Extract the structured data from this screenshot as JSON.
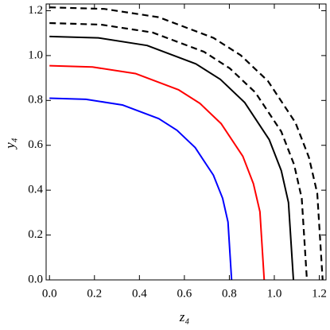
{
  "chart_data": {
    "type": "line",
    "x_label": "z₄",
    "y_label": "y₄",
    "xlim": [
      -0.015,
      1.23
    ],
    "ylim": [
      0,
      1.23
    ],
    "xticks": [
      {
        "value": 0,
        "label": "0.0"
      },
      0.2,
      0.4,
      0.6,
      0.8,
      {
        "value": 1,
        "label": "1.0"
      },
      1.2
    ],
    "yticks": [
      {
        "value": 0,
        "label": "0.0"
      },
      0.2,
      0.4,
      0.6,
      0.8,
      {
        "value": 1,
        "label": "1.0"
      },
      1.2
    ],
    "series": [
      {
        "color": "#0000ff",
        "dash": false,
        "x": [
          0,
          0.162,
          0.324,
          0.486,
          0.567,
          0.648,
          0.729,
          0.77,
          0.794,
          0.81
        ],
        "values": [
          0.81,
          0.805,
          0.78,
          0.719,
          0.667,
          0.59,
          0.467,
          0.364,
          0.258,
          0
        ]
      },
      {
        "color": "#ff0000",
        "dash": false,
        "x": [
          0,
          0.191,
          0.382,
          0.573,
          0.669,
          0.764,
          0.86,
          0.907,
          0.936,
          0.955
        ],
        "values": [
          0.955,
          0.949,
          0.92,
          0.848,
          0.787,
          0.696,
          0.551,
          0.429,
          0.304,
          0
        ]
      },
      {
        "color": "#000000",
        "dash": false,
        "x": [
          0,
          0.217,
          0.434,
          0.651,
          0.76,
          0.868,
          0.977,
          1.031,
          1.063,
          1.085
        ],
        "values": [
          1.085,
          1.079,
          1.045,
          0.963,
          0.894,
          0.791,
          0.626,
          0.487,
          0.345,
          0
        ]
      },
      {
        "color": "#000000",
        "dash": true,
        "x": [
          0,
          0.229,
          0.458,
          0.687,
          0.802,
          0.916,
          1.031,
          1.088,
          1.122,
          1.145
        ],
        "values": [
          1.145,
          1.138,
          1.103,
          1.017,
          0.943,
          0.835,
          0.661,
          0.514,
          0.364,
          0
        ]
      },
      {
        "color": "#000000",
        "dash": true,
        "x": [
          0,
          0.243,
          0.486,
          0.729,
          0.851,
          0.972,
          1.094,
          1.154,
          1.191,
          1.215
        ],
        "values": [
          1.215,
          1.208,
          1.171,
          1.079,
          1.001,
          0.886,
          0.701,
          0.546,
          0.386,
          0
        ]
      }
    ]
  }
}
